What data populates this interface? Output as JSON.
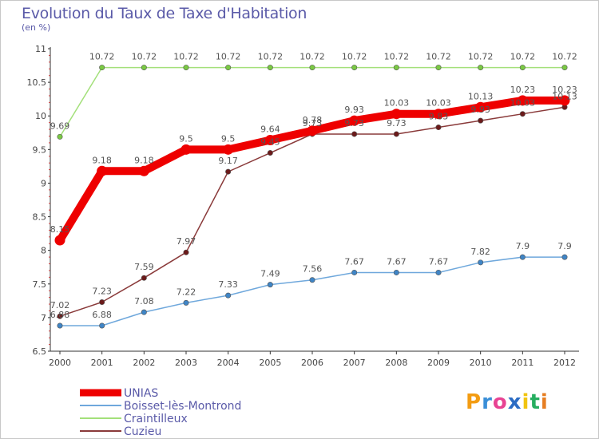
{
  "title": "Evolution du Taux de Taxe d'Habitation",
  "unit_label": "(en %)",
  "brand": {
    "text": "Proxiti",
    "letters": [
      {
        "ch": "P",
        "color": "#f39c12"
      },
      {
        "ch": "r",
        "color": "#3a8fd8"
      },
      {
        "ch": "o",
        "color": "#e84393"
      },
      {
        "ch": "x",
        "color": "#2b6cc4"
      },
      {
        "ch": "i",
        "color": "#f1c40f"
      },
      {
        "ch": "t",
        "color": "#27ae60"
      },
      {
        "ch": "i",
        "color": "#e67e22"
      }
    ]
  },
  "chart_data": {
    "type": "line",
    "title": "Evolution du Taux de Taxe d'Habitation",
    "ylabel": "(en %)",
    "xlabel": "",
    "ylim": [
      6.5,
      11
    ],
    "y_ticks": [
      6.5,
      7,
      7.5,
      8,
      8.5,
      9,
      9.5,
      10,
      10.5,
      11
    ],
    "y_tick_labels": [
      "6.5",
      "7",
      "7.5",
      "8",
      "8.5",
      "9",
      "9.5",
      "10",
      "10.5",
      "11"
    ],
    "x": [
      "2000",
      "2001",
      "2002",
      "2003",
      "2004",
      "2005",
      "2006",
      "2007",
      "2008",
      "2009",
      "2010",
      "2011",
      "2012"
    ],
    "grid": false,
    "legend_position": "bottom-left",
    "series": [
      {
        "name": "Boisset-lès-Montrond",
        "color": "#6fa8dc",
        "marker": "#3f85c6",
        "values": [
          6.88,
          6.88,
          7.08,
          7.22,
          7.33,
          7.49,
          7.56,
          7.67,
          7.67,
          7.67,
          7.82,
          7.9,
          7.9
        ]
      },
      {
        "name": "Craintilleux",
        "color": "#a3e07a",
        "marker": "#7ac943",
        "values": [
          9.69,
          10.72,
          10.72,
          10.72,
          10.72,
          10.72,
          10.72,
          10.72,
          10.72,
          10.72,
          10.72,
          10.72,
          10.72
        ]
      },
      {
        "name": "Cuzieu",
        "color": "#8a3a3a",
        "marker": "#6b1a1a",
        "values": [
          7.02,
          7.23,
          7.59,
          7.97,
          9.17,
          9.45,
          9.73,
          9.73,
          9.73,
          9.83,
          9.93,
          10.03,
          10.13
        ]
      },
      {
        "name": "UNIAS",
        "color": "#ee0000",
        "marker": "#ee0000",
        "values": [
          8.15,
          9.18,
          9.18,
          9.5,
          9.5,
          9.64,
          9.78,
          9.93,
          10.03,
          10.03,
          10.13,
          10.23,
          10.23
        ]
      }
    ],
    "legend_order": [
      "UNIAS",
      "Boisset-lès-Montrond",
      "Craintilleux",
      "Cuzieu"
    ]
  }
}
